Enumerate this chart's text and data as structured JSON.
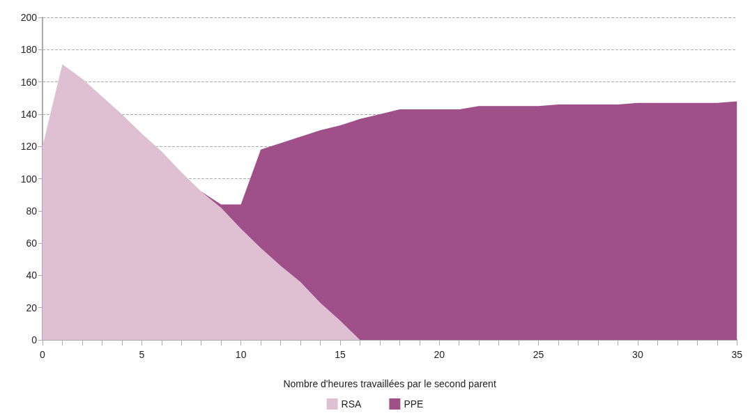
{
  "chart_data": {
    "type": "area",
    "xlabel": "Nombre d'heures travaillées par le second parent",
    "x": [
      0,
      1,
      2,
      3,
      4,
      5,
      6,
      7,
      8,
      9,
      10,
      11,
      12,
      13,
      14,
      15,
      16,
      17,
      18,
      19,
      20,
      21,
      22,
      23,
      24,
      25,
      26,
      27,
      28,
      29,
      30,
      31,
      32,
      33,
      34,
      35
    ],
    "series": [
      {
        "name": "RSA",
        "color": "#dfc0d3",
        "values": [
          120,
          171,
          162,
          151,
          140,
          128,
          117,
          104,
          92,
          82,
          69,
          57,
          46,
          36,
          23,
          12,
          0,
          null,
          null,
          null,
          null,
          null,
          null,
          null,
          null,
          null,
          null,
          null,
          null,
          null,
          null,
          null,
          null,
          null,
          null,
          null
        ]
      },
      {
        "name": "PPE",
        "color": "#a05088",
        "values": [
          null,
          null,
          null,
          null,
          null,
          null,
          null,
          null,
          92,
          84,
          84,
          118,
          122,
          126,
          130,
          133,
          137,
          140,
          143,
          143,
          143,
          143,
          145,
          145,
          145,
          145,
          146,
          146,
          146,
          146,
          147,
          147,
          147,
          147,
          147,
          148
        ]
      }
    ],
    "xlim": [
      0,
      35
    ],
    "xticks": [
      0,
      {
        "value": 1,
        "label": null
      },
      {
        "value": 2,
        "label": null
      },
      {
        "value": 3,
        "label": null
      },
      {
        "value": 4,
        "label": null
      },
      5,
      {
        "value": 6,
        "label": null
      },
      {
        "value": 7,
        "label": null
      },
      {
        "value": 8,
        "label": null
      },
      {
        "value": 9,
        "label": null
      },
      10,
      {
        "value": 11,
        "label": null
      },
      {
        "value": 12,
        "label": null
      },
      {
        "value": 13,
        "label": null
      },
      {
        "value": 14,
        "label": null
      },
      15,
      {
        "value": 16,
        "label": null
      },
      {
        "value": 17,
        "label": null
      },
      {
        "value": 18,
        "label": null
      },
      {
        "value": 19,
        "label": null
      },
      20,
      {
        "value": 21,
        "label": null
      },
      {
        "value": 22,
        "label": null
      },
      {
        "value": 23,
        "label": null
      },
      {
        "value": 24,
        "label": null
      },
      25,
      {
        "value": 26,
        "label": null
      },
      {
        "value": 27,
        "label": null
      },
      {
        "value": 28,
        "label": null
      },
      {
        "value": 29,
        "label": null
      },
      30,
      {
        "value": 31,
        "label": null
      },
      {
        "value": 32,
        "label": null
      },
      {
        "value": 33,
        "label": null
      },
      {
        "value": 34,
        "label": null
      },
      35
    ],
    "ylim": [
      0,
      200
    ],
    "yticks": [
      0,
      20,
      40,
      60,
      80,
      100,
      120,
      140,
      160,
      180,
      200
    ],
    "grid": "y",
    "legend": "bottom",
    "marker": "none"
  }
}
